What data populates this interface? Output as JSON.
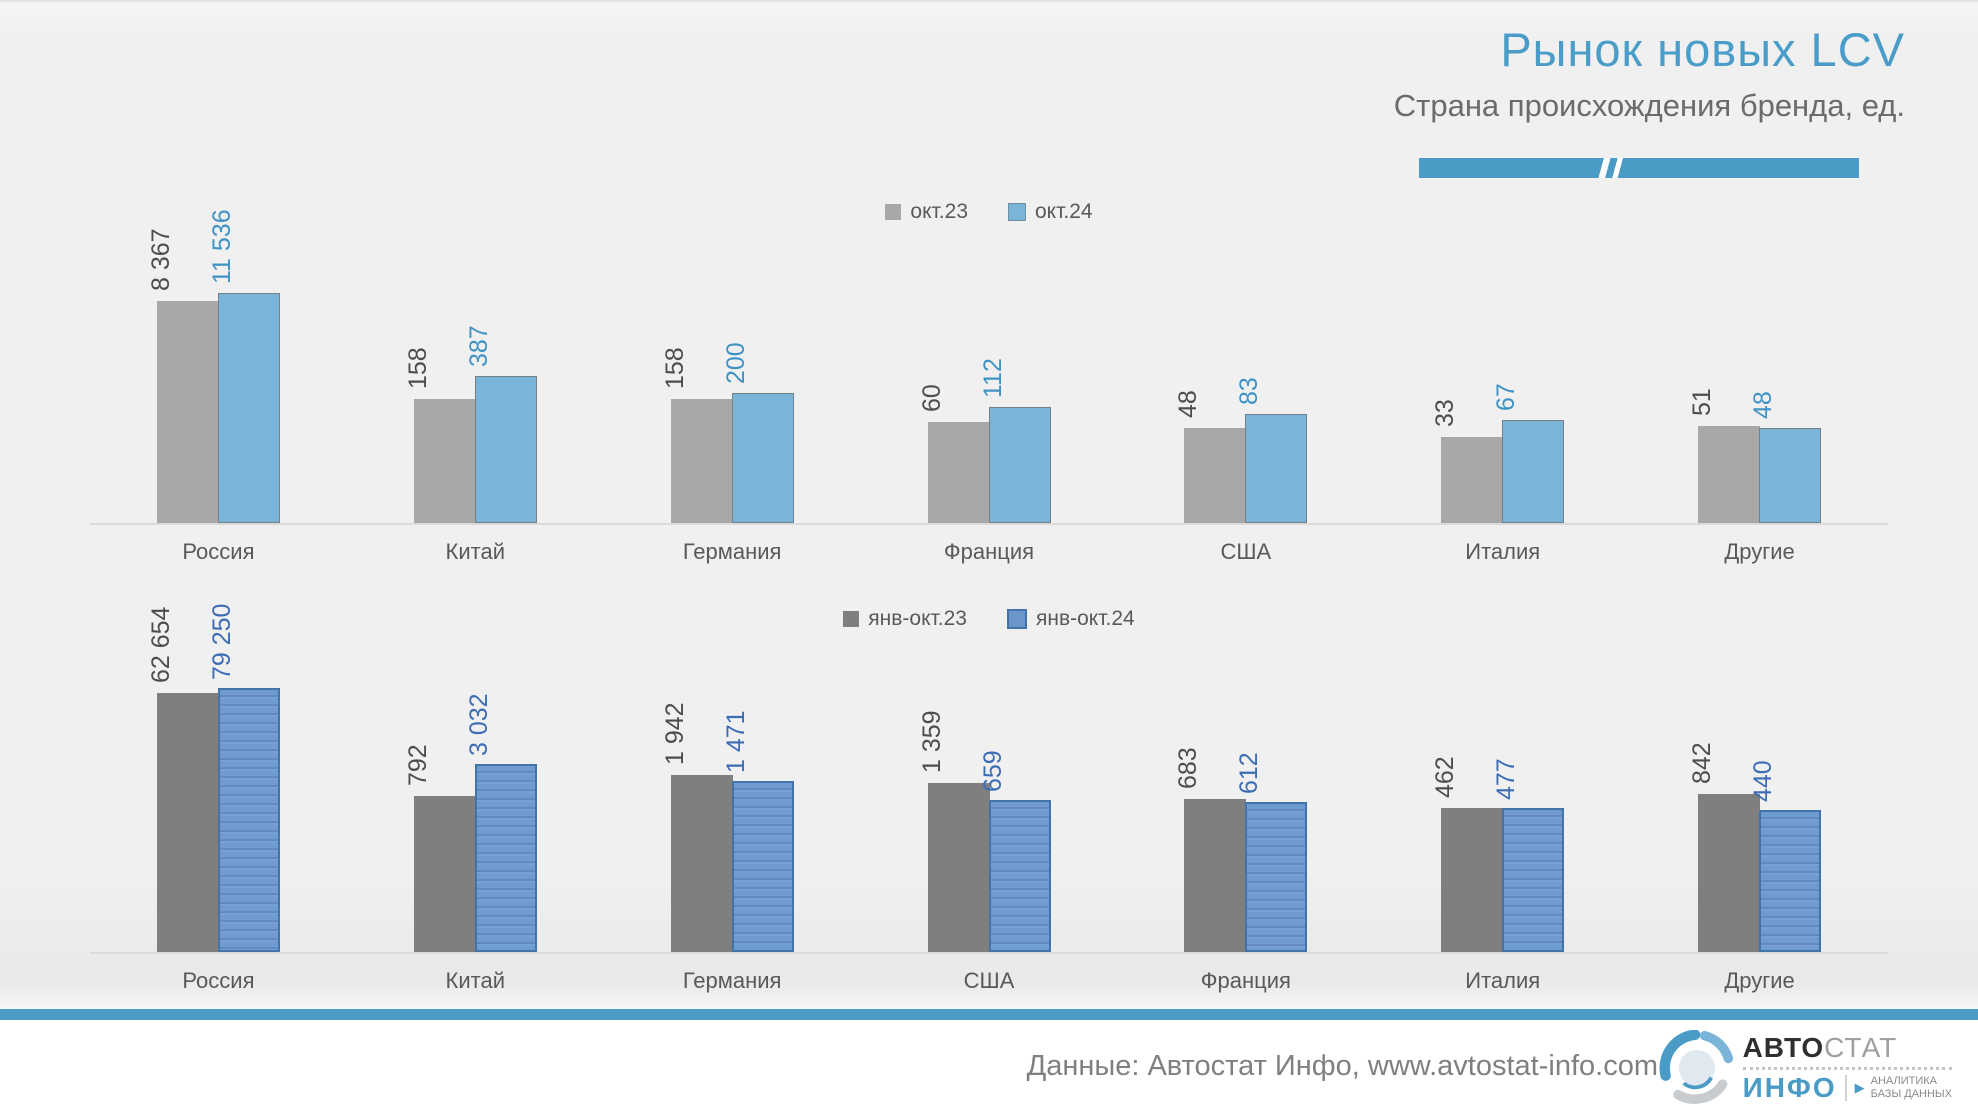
{
  "header": {
    "title": "Рынок новых LCV",
    "subtitle": "Страна происхождения бренда, ед."
  },
  "colors": {
    "accent_blue": "#4a9cc7",
    "chart1_prev_gray": "#a8a8a8",
    "chart1_curr_blue": "#7ab5d9",
    "chart2_prev_gray": "#7f7f7f",
    "chart2_curr_blue": "#6b96cc",
    "value_label_dark": "#4d4d4d",
    "value_label_blue_top": "#3f93c4",
    "value_label_blue_bottom": "#3c6cb4"
  },
  "chart_data": [
    {
      "type": "bar",
      "title": "",
      "legend_position": "top-center",
      "scale": "log10",
      "categories": [
        "Россия",
        "Китай",
        "Германия",
        "Франция",
        "США",
        "Италия",
        "Другие"
      ],
      "series": [
        {
          "name": "окт.23",
          "values": [
            8367,
            158,
            158,
            60,
            48,
            33,
            51
          ]
        },
        {
          "name": "окт.24",
          "values": [
            11536,
            387,
            200,
            112,
            83,
            67,
            48
          ]
        }
      ],
      "value_labels": [
        [
          "8 367",
          "158",
          "158",
          "60",
          "48",
          "33",
          "51"
        ],
        [
          "11 536",
          "387",
          "200",
          "112",
          "83",
          "67",
          "48"
        ]
      ]
    },
    {
      "type": "bar",
      "title": "",
      "legend_position": "top-center",
      "scale": "log10",
      "categories": [
        "Россия",
        "Китай",
        "Германия",
        "США",
        "Франция",
        "Италия",
        "Другие"
      ],
      "series": [
        {
          "name": "янв-окт.23",
          "values": [
            62654,
            792,
            1942,
            1359,
            683,
            462,
            842
          ]
        },
        {
          "name": "янв-окт.24",
          "values": [
            79250,
            3032,
            1471,
            659,
            612,
            477,
            440
          ]
        }
      ],
      "value_labels": [
        [
          "62 654",
          "792",
          "1 942",
          "1 359",
          "683",
          "462",
          "842"
        ],
        [
          "79 250",
          "3 032",
          "1 471",
          "659",
          "612",
          "477",
          "440"
        ]
      ]
    }
  ],
  "footer": {
    "source": "Данные: Автостат Инфо, www.avtostat-info.com",
    "logo": {
      "part1": "АВТО",
      "part2": "СТАТ",
      "part3": "ИНФО",
      "arrow": "▶",
      "tagline1": "АНАЛИТИКА",
      "tagline2": "БАЗЫ ДАННЫХ"
    }
  }
}
